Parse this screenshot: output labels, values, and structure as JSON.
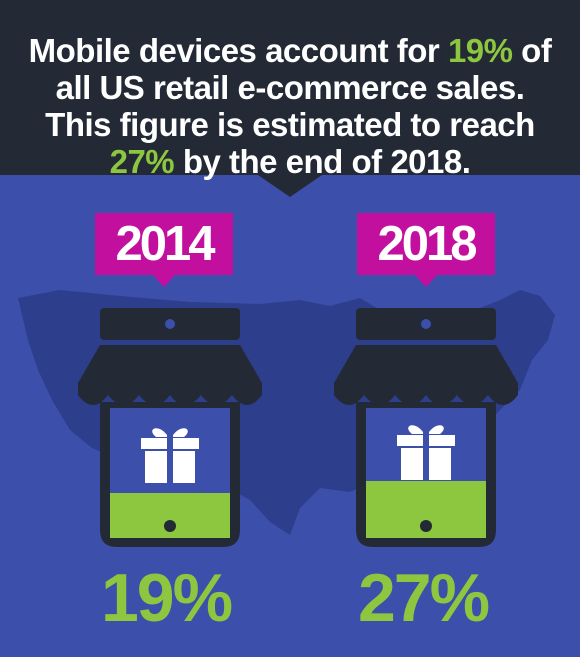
{
  "headline": {
    "line1_pre": "Mobile devices account for ",
    "line1_hl": "19%",
    "line1_post": " of",
    "line2": "all US retail e-commerce sales.",
    "line3": "This figure is estimated to reach",
    "line4_hl": "27%",
    "line4_post": " by the end of 2018."
  },
  "columns": [
    {
      "year": "2014",
      "percent": "19%",
      "fill_fraction": 0.19
    },
    {
      "year": "2018",
      "percent": "27%",
      "fill_fraction": 0.27
    }
  ],
  "colors": {
    "background": "#3c4faa",
    "header": "#232a36",
    "accent_green": "#8dc63f",
    "tag_magenta": "#c30f9e",
    "phone_dark": "#232a36",
    "map": "#2d3e8d"
  },
  "icons": [
    "us-map-silhouette",
    "phone-storefront-icon",
    "gift-icon"
  ]
}
